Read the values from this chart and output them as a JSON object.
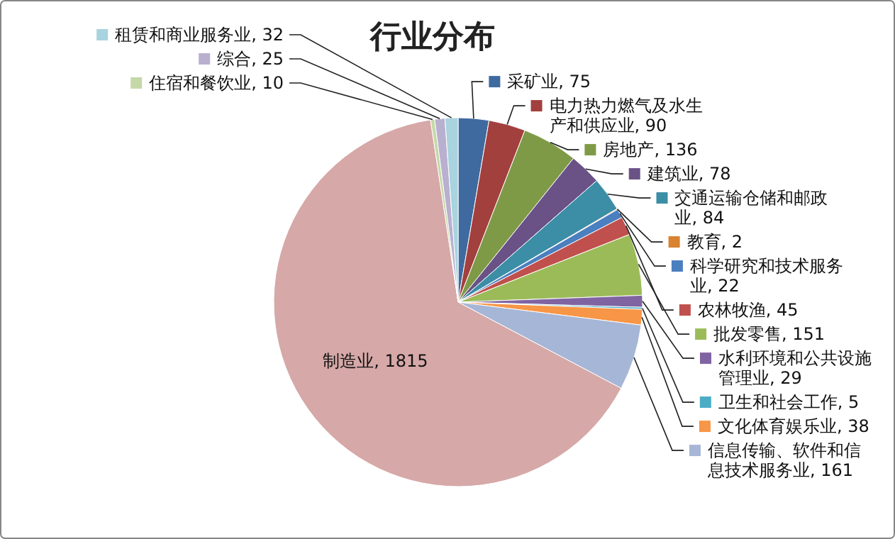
{
  "chart_data": {
    "type": "pie",
    "title": "行业分布",
    "categories": [
      "采矿业",
      "电力热力燃气及水生产和供应业",
      "房地产",
      "建筑业",
      "交通运输仓储和邮政业",
      "教育",
      "科学研究和技术服务业",
      "农林牧渔",
      "批发零售",
      "水利环境和公共设施管理业",
      "卫生和社会工作",
      "文化体育娱乐业",
      "信息传输、软件和信息技术服务业",
      "制造业",
      "住宿和餐饮业",
      "综合",
      "租赁和商业服务业"
    ],
    "values": [
      75,
      90,
      136,
      78,
      84,
      2,
      22,
      45,
      151,
      29,
      5,
      38,
      161,
      1815,
      10,
      25,
      32
    ],
    "colors": [
      "#3f6aa0",
      "#a2403d",
      "#7f9a47",
      "#6a5287",
      "#3b8ea5",
      "#d9822f",
      "#4a7fc0",
      "#c0504d",
      "#9bbb59",
      "#8064a2",
      "#4bacc6",
      "#f79646",
      "#a6b6d6",
      "#d6a8a7",
      "#c6d8a8",
      "#b9b0cf",
      "#a8d3df"
    ],
    "legend": "right",
    "value_labels": [
      ", 75",
      ", 90",
      ", 136",
      ", 78",
      ", 84",
      ", 2",
      ", 22",
      ", 45",
      ", 151",
      ", 29",
      ", 5",
      ", 38",
      ", 161",
      ", 1815",
      ", 10",
      ", 25",
      ", 32"
    ]
  }
}
